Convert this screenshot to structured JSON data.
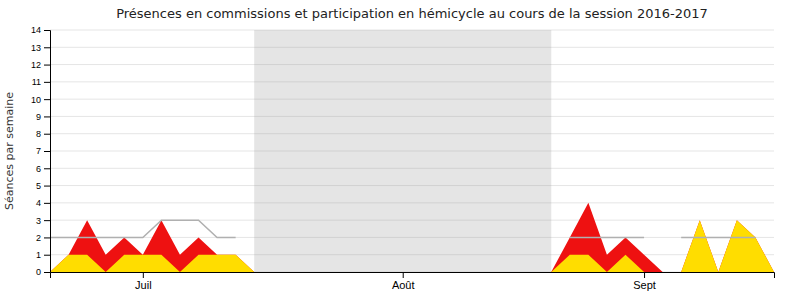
{
  "chart_data": {
    "type": "area",
    "title": "Présences en commissions et participation en hémicycle au cours de la session 2016-2017",
    "ylabel": "Séances par semaine",
    "categories": [
      null,
      null,
      null,
      null,
      null,
      "Juil",
      null,
      null,
      null,
      null,
      null,
      null,
      null,
      null,
      null,
      null,
      null,
      null,
      null,
      "Août",
      null,
      null,
      null,
      null,
      null,
      null,
      null,
      null,
      null,
      null,
      null,
      null,
      "Sept",
      null,
      null,
      null,
      null,
      null,
      null,
      null
    ],
    "series": [
      {
        "type": "area",
        "color": "#ee1111",
        "values": [
          0,
          1,
          3,
          1,
          2,
          1,
          3,
          1,
          2,
          1,
          1,
          0,
          0,
          0,
          0,
          0,
          0,
          0,
          0,
          0,
          0,
          0,
          0,
          0,
          0,
          0,
          0,
          0,
          2,
          4,
          1,
          2,
          1,
          0,
          0,
          3,
          0,
          3,
          2,
          0
        ]
      },
      {
        "type": "area",
        "color": "#ffdd00",
        "values": [
          0,
          1,
          1,
          0,
          1,
          1,
          1,
          0,
          1,
          1,
          1,
          0,
          0,
          0,
          0,
          0,
          0,
          0,
          0,
          0,
          0,
          0,
          0,
          0,
          0,
          0,
          0,
          0,
          1,
          1,
          0,
          1,
          0,
          0,
          0,
          3,
          0,
          3,
          2,
          0
        ]
      },
      {
        "type": "line",
        "color": "#b0b0b0",
        "values": [
          2,
          2,
          2,
          2,
          2,
          2,
          3,
          3,
          3,
          2,
          2,
          null,
          null,
          null,
          null,
          null,
          null,
          null,
          null,
          null,
          null,
          null,
          null,
          null,
          null,
          null,
          null,
          null,
          2,
          2,
          2,
          2,
          2,
          null,
          2,
          2,
          2,
          2,
          2,
          null
        ]
      }
    ],
    "shaded_span": [
      11,
      27
    ],
    "ylim": [
      0,
      14
    ],
    "yticks": [
      0,
      1,
      2,
      3,
      4,
      5,
      6,
      7,
      8,
      9,
      10,
      11,
      12,
      13,
      14
    ],
    "grid": true
  }
}
